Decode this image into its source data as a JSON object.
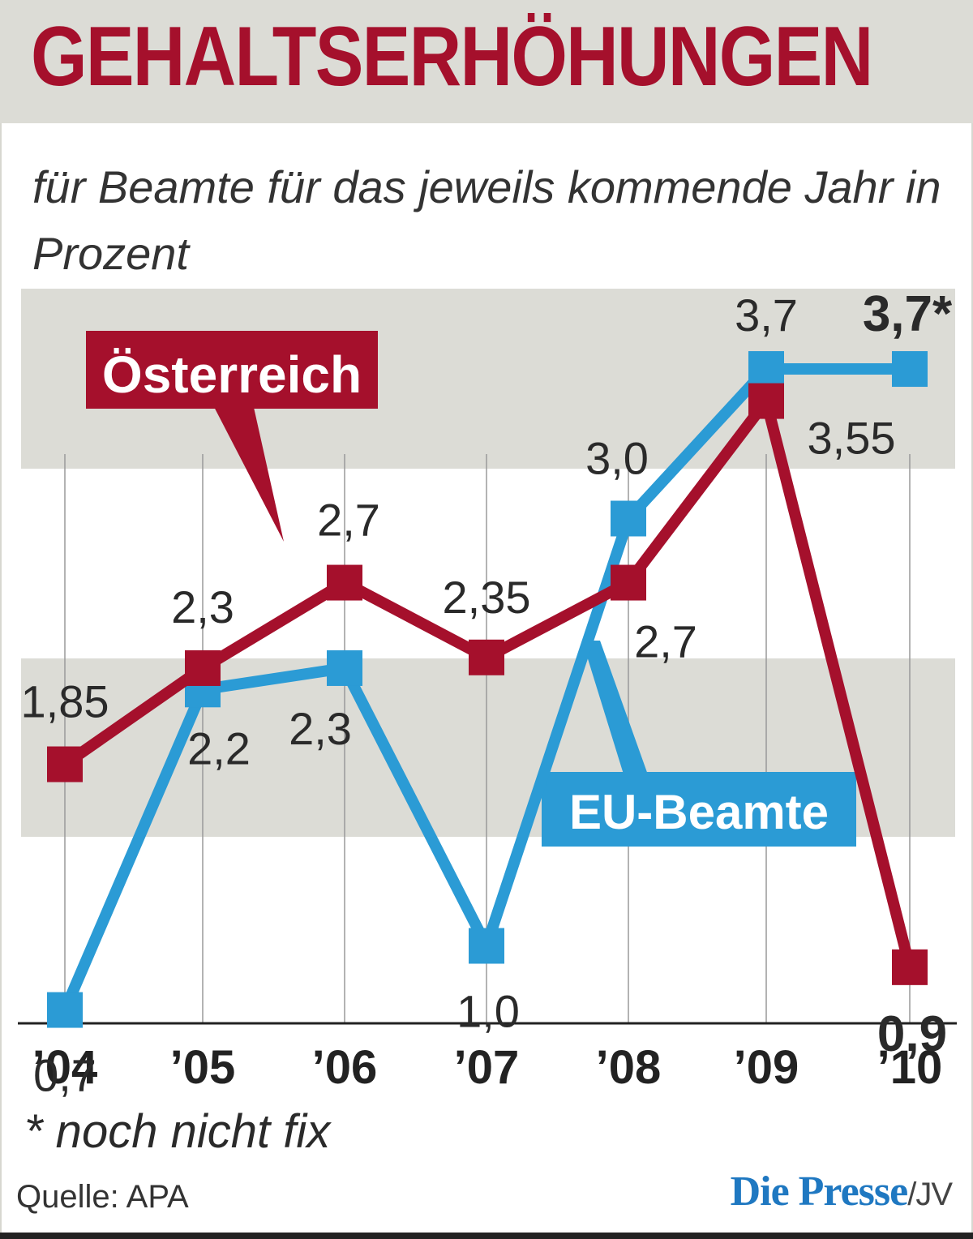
{
  "header": {
    "title": "GEHALTSERHÖHUNGEN"
  },
  "subtitle": "für Beamte für das jeweils kommende Jahr in Prozent",
  "footnote": "* noch nicht fix",
  "source": "Quelle: APA",
  "brand": {
    "name": "Die Presse",
    "suffix": "/JV"
  },
  "colors": {
    "title": "#a5102c",
    "oesterreich": "#a5102c",
    "eu": "#2b9bd5",
    "band": "#dcdcd6"
  },
  "chart_data": {
    "type": "line",
    "categories": [
      "’04",
      "’05",
      "’06",
      "’07",
      "’08",
      "’09",
      "’10"
    ],
    "ylim": [
      0,
      4.15
    ],
    "series": [
      {
        "name": "Österreich",
        "color": "#a5102c",
        "values": [
          1.85,
          2.3,
          2.7,
          2.35,
          2.7,
          3.55,
          0.9
        ],
        "labels": [
          "1,85",
          "2,3",
          "2,7",
          "2,35",
          "2,7",
          "3,55",
          "0,9"
        ]
      },
      {
        "name": "EU-Beamte",
        "color": "#2b9bd5",
        "values": [
          0.7,
          2.2,
          2.3,
          1.0,
          3.0,
          3.7,
          3.7
        ],
        "labels": [
          "0,7",
          "2,2",
          "2,3",
          "1,0",
          "3,0",
          "3,7",
          "3,7*"
        ]
      }
    ]
  }
}
